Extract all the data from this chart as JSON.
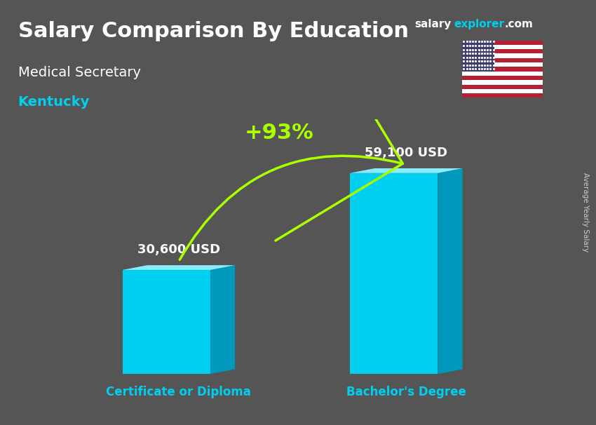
{
  "title": "Salary Comparison By Education",
  "subtitle": "Medical Secretary",
  "location": "Kentucky",
  "categories": [
    "Certificate or Diploma",
    "Bachelor's Degree"
  ],
  "values": [
    30600,
    59100
  ],
  "value_labels": [
    "30,600 USD",
    "59,100 USD"
  ],
  "pct_change": "+93%",
  "bar_face_color": "#00CFEF",
  "bar_side_color": "#0099BB",
  "bar_top_color": "#88EEFF",
  "bar_width": 0.32,
  "ylim": [
    0,
    75000
  ],
  "title_color": "#FFFFFF",
  "subtitle_color": "#FFFFFF",
  "location_color": "#00CFEF",
  "label_color": "#FFFFFF",
  "xticklabel_color": "#00CFEF",
  "pct_color": "#AAFF00",
  "arrow_color": "#AAFF00",
  "site_explorer_color": "#00CFEF",
  "bg_color": "#555555",
  "figsize": [
    8.5,
    6.06
  ],
  "dpi": 100
}
